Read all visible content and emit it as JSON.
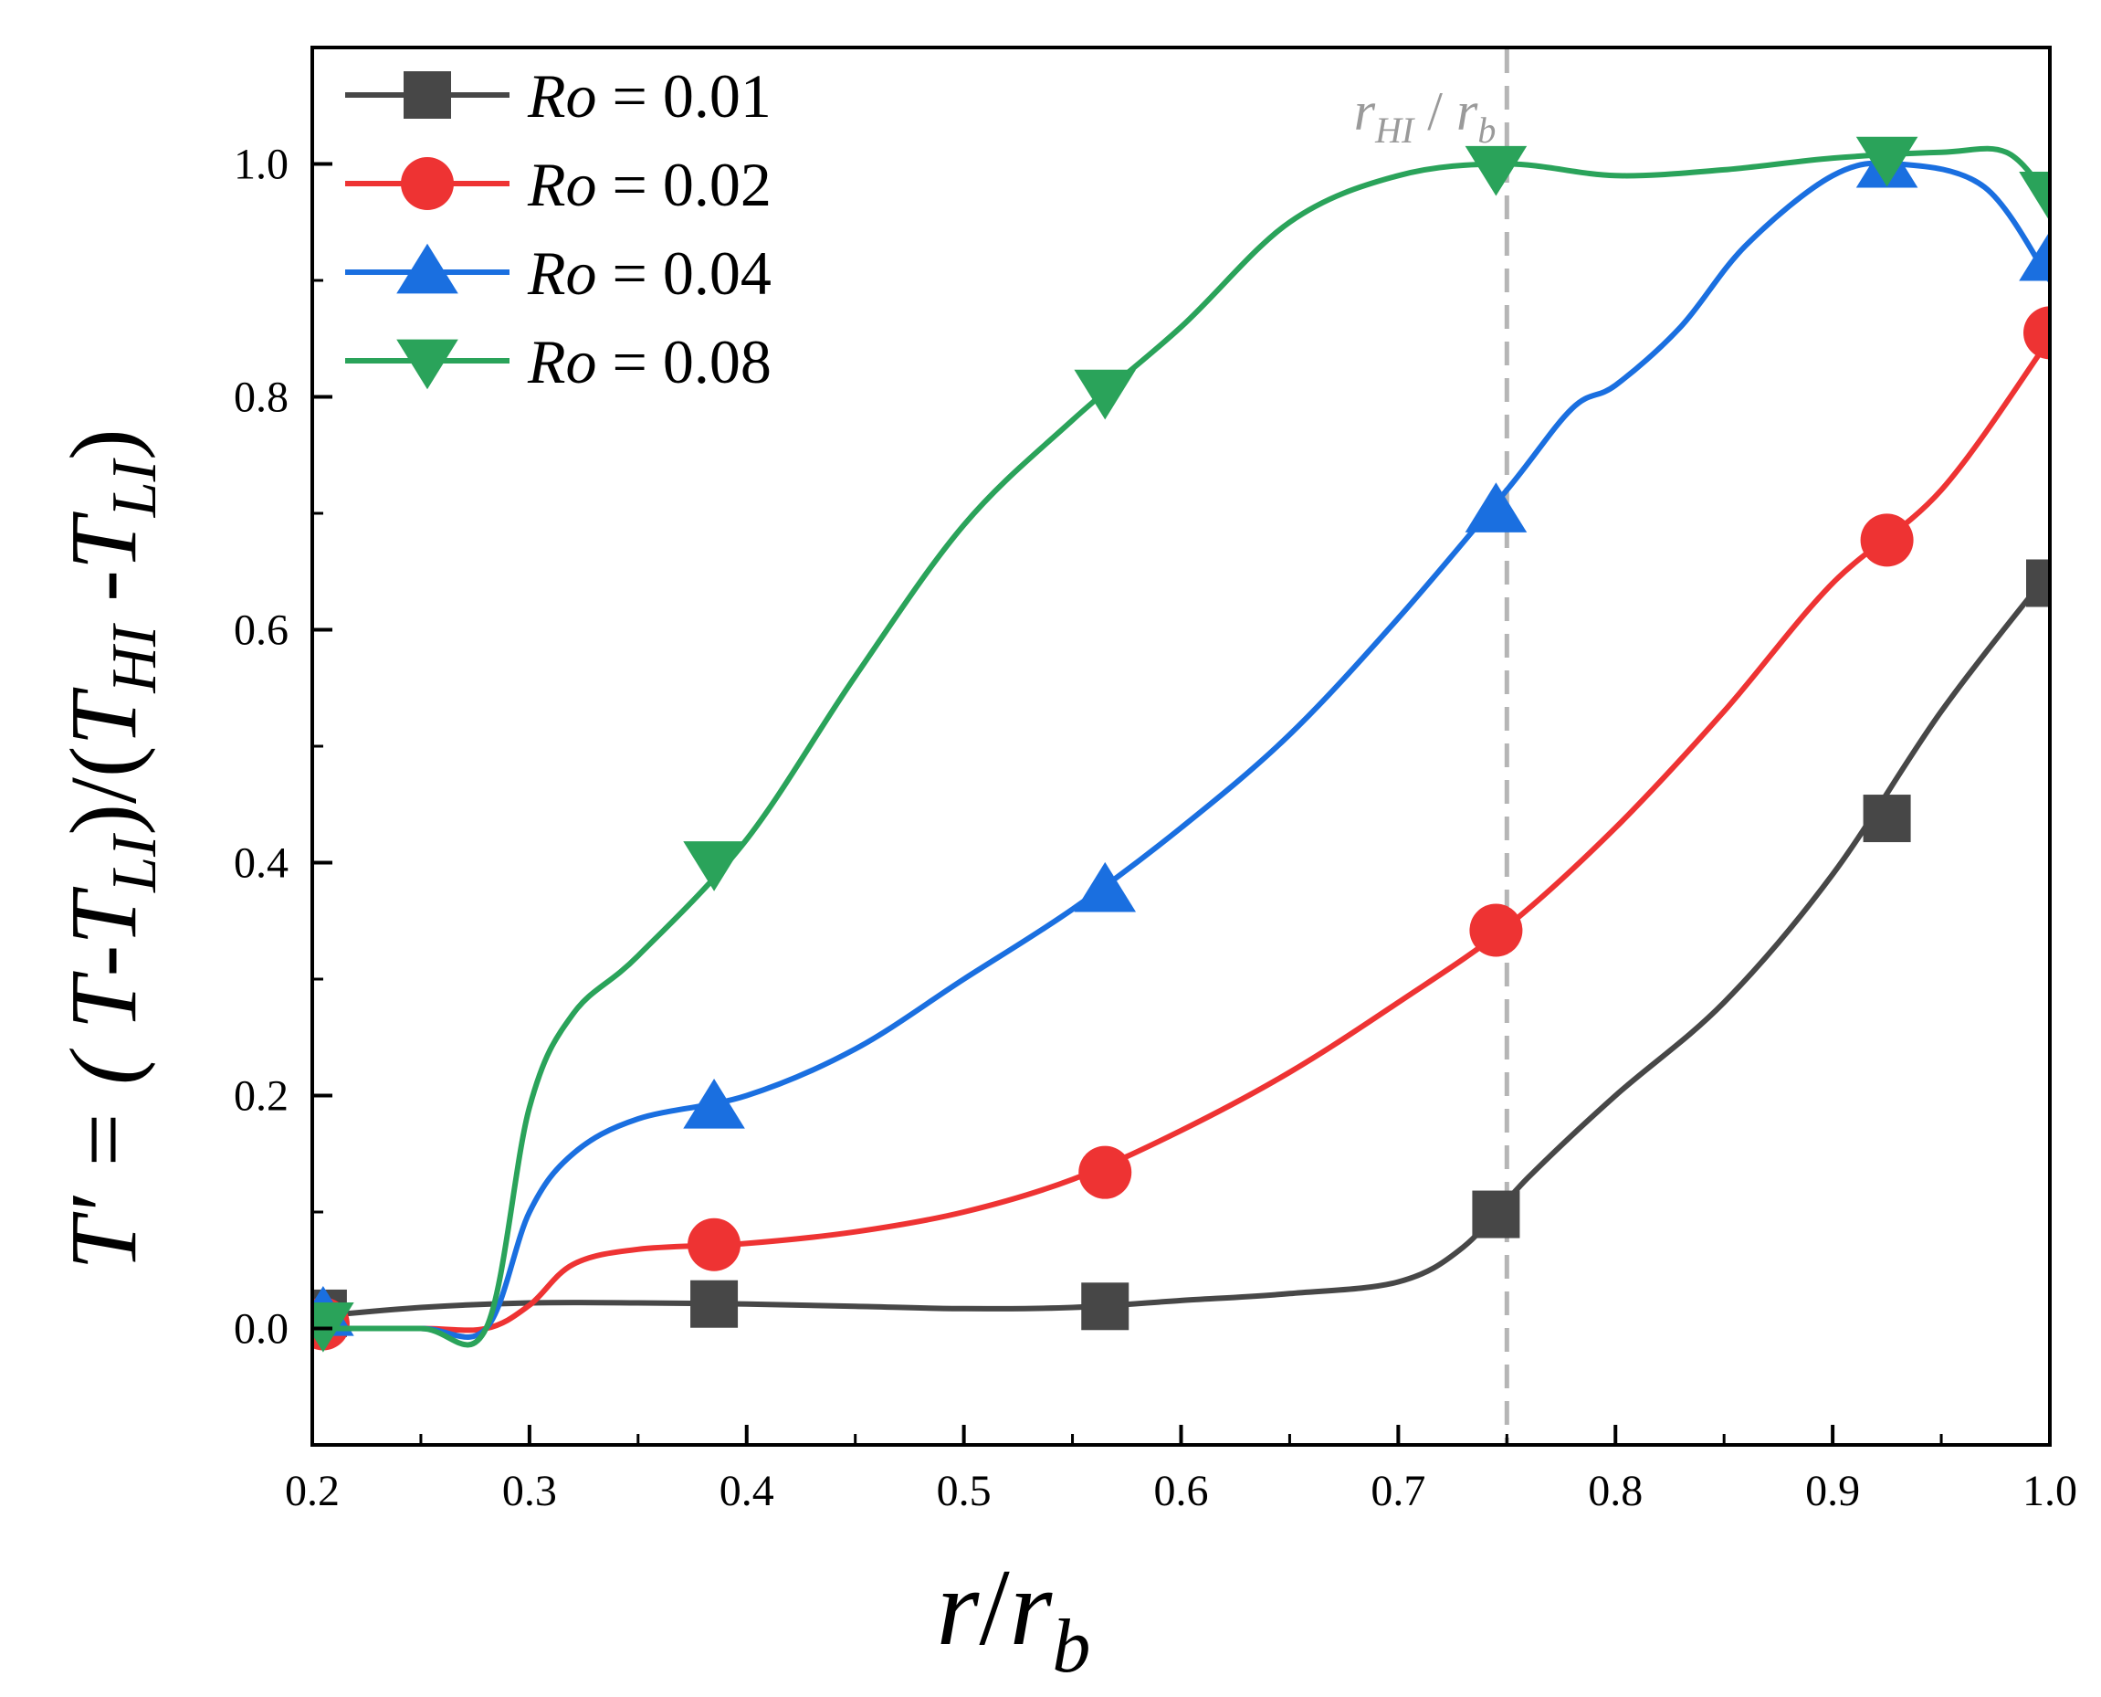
{
  "chart_data": {
    "type": "line",
    "title": "",
    "xlabel": {
      "main": "r",
      "slash": "/",
      "sub_base": "r",
      "sub": "b"
    },
    "ylabel": {
      "parts": [
        "T′ = ( ",
        "T",
        "-",
        "T",
        "LI",
        ")/(",
        "T",
        "HI",
        " -",
        "T",
        "LI",
        ")"
      ]
    },
    "xlim": [
      0.2,
      1.0
    ],
    "ylim": [
      -0.1,
      1.1
    ],
    "xticks": [
      "0.2",
      "0.3",
      "0.4",
      "0.5",
      "0.6",
      "0.7",
      "0.8",
      "0.9",
      "1.0"
    ],
    "yticks": [
      "0.0",
      "0.2",
      "0.4",
      "0.6",
      "0.8",
      "1.0"
    ],
    "grid": false,
    "legend_position": "top-left",
    "reference_line": {
      "x": 0.75,
      "label_main": "r",
      "label_sub": "HI",
      "label_sep": " / ",
      "label_main2": "r",
      "label_sub2": "b"
    },
    "series": [
      {
        "name": "Ro = 0.01",
        "legend_ro": "Ro",
        "legend_value": " = 0.01",
        "color": "#474747",
        "marker": "square",
        "x": [
          0.2,
          0.25,
          0.3,
          0.35,
          0.4,
          0.45,
          0.5,
          0.55,
          0.6,
          0.65,
          0.7,
          0.73,
          0.76,
          0.8,
          0.85,
          0.9,
          0.95,
          1.0
        ],
        "y": [
          0.01,
          0.018,
          0.022,
          0.022,
          0.021,
          0.019,
          0.017,
          0.018,
          0.024,
          0.03,
          0.04,
          0.07,
          0.13,
          0.2,
          0.28,
          0.39,
          0.53,
          0.65
        ],
        "markers_x": [
          0.205,
          0.385,
          0.565,
          0.745,
          0.925,
          1.0
        ],
        "markers_y": [
          0.013,
          0.021,
          0.019,
          0.098,
          0.438,
          0.64
        ]
      },
      {
        "name": "Ro = 0.02",
        "legend_ro": "Ro",
        "legend_value": " = 0.02",
        "color": "#ee3333",
        "marker": "circle",
        "x": [
          0.2,
          0.25,
          0.28,
          0.3,
          0.32,
          0.35,
          0.4,
          0.45,
          0.5,
          0.55,
          0.6,
          0.65,
          0.7,
          0.75,
          0.8,
          0.85,
          0.9,
          0.95,
          1.0
        ],
        "y": [
          0.0,
          0.0,
          0.0,
          0.02,
          0.055,
          0.068,
          0.073,
          0.083,
          0.1,
          0.128,
          0.17,
          0.22,
          0.28,
          0.345,
          0.43,
          0.53,
          0.64,
          0.72,
          0.85
        ],
        "markers_x": [
          0.205,
          0.385,
          0.565,
          0.745,
          0.925,
          1.0
        ],
        "markers_y": [
          0.004,
          0.072,
          0.134,
          0.342,
          0.677,
          0.855
        ]
      },
      {
        "name": "Ro = 0.04",
        "legend_ro": "Ro",
        "legend_value": " = 0.04",
        "color": "#1a6fe0",
        "marker": "triangle-up",
        "x": [
          0.2,
          0.25,
          0.28,
          0.3,
          0.32,
          0.35,
          0.4,
          0.45,
          0.5,
          0.55,
          0.6,
          0.65,
          0.7,
          0.75,
          0.78,
          0.8,
          0.83,
          0.86,
          0.9,
          0.93,
          0.97,
          1.0
        ],
        "y": [
          0.0,
          0.0,
          0.0,
          0.1,
          0.15,
          0.18,
          0.2,
          0.24,
          0.3,
          0.36,
          0.43,
          0.51,
          0.61,
          0.72,
          0.79,
          0.81,
          0.86,
          0.93,
          0.99,
          1.0,
          0.98,
          0.9
        ],
        "markers_x": [
          0.205,
          0.385,
          0.565,
          0.745,
          0.925,
          1.0
        ],
        "markers_y": [
          0.012,
          0.19,
          0.376,
          0.702,
          0.998,
          0.918
        ]
      },
      {
        "name": "Ro = 0.08",
        "legend_ro": "Ro",
        "legend_value": " = 0.08",
        "color": "#2aa35a",
        "marker": "triangle-down",
        "x": [
          0.2,
          0.25,
          0.28,
          0.3,
          0.32,
          0.35,
          0.4,
          0.45,
          0.5,
          0.55,
          0.6,
          0.65,
          0.7,
          0.75,
          0.8,
          0.85,
          0.9,
          0.95,
          0.98,
          1.0
        ],
        "y": [
          0.0,
          0.0,
          0.0,
          0.19,
          0.27,
          0.32,
          0.42,
          0.56,
          0.69,
          0.78,
          0.86,
          0.95,
          0.99,
          1.0,
          0.99,
          0.995,
          1.005,
          1.01,
          1.01,
          0.97
        ],
        "markers_x": [
          0.205,
          0.385,
          0.565,
          0.745,
          0.925,
          1.0
        ],
        "markers_y": [
          0.004,
          0.4,
          0.805,
          0.997,
          1.005,
          0.975
        ]
      }
    ]
  }
}
